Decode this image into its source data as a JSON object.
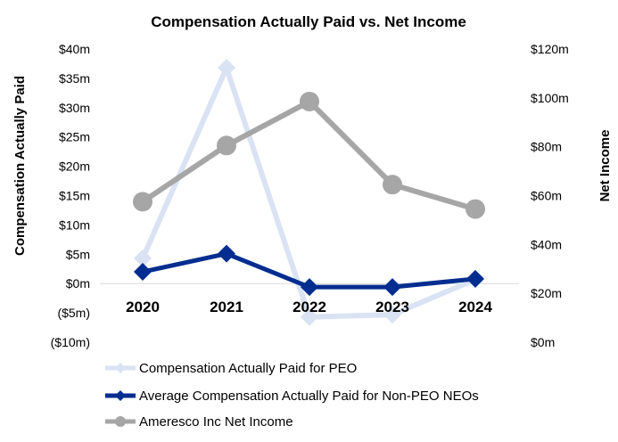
{
  "chart_data": {
    "type": "line",
    "title": "Compensation Actually Paid vs. Net Income",
    "categories": [
      "2020",
      "2021",
      "2022",
      "2023",
      "2024"
    ],
    "ylabel": "Compensation Actually Paid",
    "y2label": "Net Income",
    "ylim": [
      -10,
      40
    ],
    "y2lim": [
      0,
      120
    ],
    "y_ticks": [
      "$40m",
      "$35m",
      "$30m",
      "$25m",
      "$20m",
      "$15m",
      "$10m",
      "$5m",
      "$0m",
      "($5m)",
      "($10m)"
    ],
    "y2_ticks": [
      "$120m",
      "$100m",
      "$80m",
      "$60m",
      "$40m",
      "$20m",
      "$0m"
    ],
    "grid": false,
    "legend_position": "bottom",
    "series": [
      {
        "name": "Compensation Actually Paid for PEO",
        "axis": "left",
        "values": [
          4.3,
          36.8,
          -5.7,
          -5.3,
          0.7
        ],
        "color": "#dae3f3",
        "marker": "diamond"
      },
      {
        "name": "Average Compensation Actually Paid for Non-PEO NEOs",
        "axis": "left",
        "values": [
          2.0,
          5.1,
          -0.6,
          -0.6,
          0.8
        ],
        "color": "#002d8f",
        "marker": "diamond"
      },
      {
        "name": "Ameresco Inc Net Income",
        "axis": "right",
        "values": [
          57.5,
          80.5,
          98.5,
          64.5,
          54.5
        ],
        "color": "#a6a6a6",
        "marker": "circle"
      }
    ]
  }
}
